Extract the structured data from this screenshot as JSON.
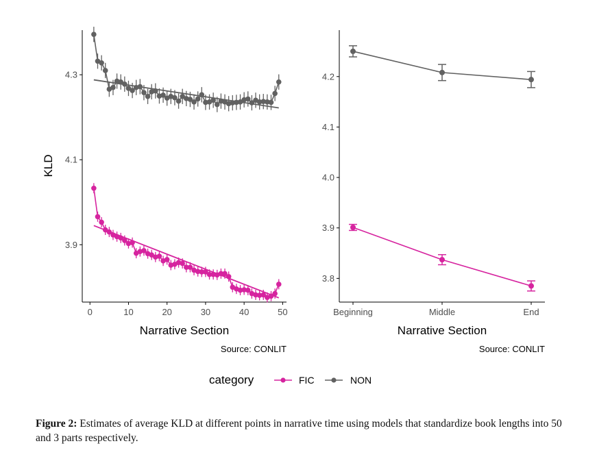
{
  "chart_data": [
    {
      "type": "line",
      "xlabel": "Narrative Section",
      "ylabel": "KLD",
      "xlim": [
        -2,
        51
      ],
      "ylim": [
        3.765,
        4.405
      ],
      "xticks": [
        0,
        10,
        20,
        30,
        40,
        50
      ],
      "yticks": [
        3.9,
        4.1,
        4.3
      ],
      "ytick_labels": [
        "3.9",
        "4.1",
        "4.3"
      ],
      "source": "Source: CONLIT",
      "error_bars": true,
      "trend_lines": true,
      "x": [
        1,
        2,
        3,
        4,
        5,
        6,
        7,
        8,
        9,
        10,
        11,
        12,
        13,
        14,
        15,
        16,
        17,
        18,
        19,
        20,
        21,
        22,
        23,
        24,
        25,
        26,
        27,
        28,
        29,
        30,
        31,
        32,
        33,
        34,
        35,
        36,
        37,
        38,
        39,
        40,
        41,
        42,
        43,
        44,
        45,
        46,
        47,
        48,
        49
      ],
      "series": [
        {
          "name": "NON",
          "color": "#616161",
          "values": [
            4.395,
            4.332,
            4.328,
            4.31,
            4.266,
            4.27,
            4.285,
            4.283,
            4.278,
            4.268,
            4.263,
            4.27,
            4.272,
            4.258,
            4.249,
            4.26,
            4.262,
            4.25,
            4.252,
            4.245,
            4.249,
            4.246,
            4.238,
            4.249,
            4.244,
            4.242,
            4.236,
            4.243,
            4.253,
            4.235,
            4.236,
            4.24,
            4.23,
            4.238,
            4.236,
            4.232,
            4.234,
            4.235,
            4.236,
            4.241,
            4.243,
            4.234,
            4.24,
            4.236,
            4.237,
            4.236,
            4.235,
            4.256,
            4.283
          ],
          "error": 0.018,
          "trend": [
            [
              1,
              4.288
            ],
            [
              49,
              4.222
            ]
          ]
        },
        {
          "name": "FIC",
          "color": "#d6249f",
          "values": [
            4.033,
            3.966,
            3.953,
            3.935,
            3.93,
            3.923,
            3.919,
            3.916,
            3.91,
            3.903,
            3.905,
            3.88,
            3.884,
            3.886,
            3.879,
            3.876,
            3.871,
            3.873,
            3.862,
            3.865,
            3.852,
            3.854,
            3.858,
            3.856,
            3.847,
            3.847,
            3.84,
            3.837,
            3.836,
            3.836,
            3.83,
            3.83,
            3.829,
            3.832,
            3.832,
            3.825,
            3.8,
            3.796,
            3.793,
            3.794,
            3.793,
            3.785,
            3.782,
            3.781,
            3.782,
            3.776,
            3.779,
            3.785,
            3.807
          ],
          "error": 0.012,
          "trend": [
            [
              1,
              3.945
            ],
            [
              49,
              3.775
            ]
          ]
        }
      ]
    },
    {
      "type": "line",
      "xlabel": "Narrative Section",
      "categories": [
        "Beginning",
        "Middle",
        "End"
      ],
      "ylim": [
        3.753,
        4.292
      ],
      "yticks": [
        3.8,
        3.9,
        4.0,
        4.1,
        4.2
      ],
      "ytick_labels": [
        "3.8",
        "3.9",
        "4.0",
        "4.1",
        "4.2"
      ],
      "source": "Source: CONLIT",
      "error_bars": true,
      "series": [
        {
          "name": "NON",
          "color": "#616161",
          "values": [
            4.25,
            4.208,
            4.194
          ],
          "error": [
            0.011,
            0.016,
            0.016
          ]
        },
        {
          "name": "FIC",
          "color": "#d6249f",
          "values": [
            3.901,
            3.837,
            3.785
          ],
          "error": [
            0.006,
            0.01,
            0.01
          ]
        }
      ]
    }
  ],
  "legend": {
    "title": "category",
    "placement": "bottom",
    "entries": [
      {
        "label": "FIC",
        "color": "#d6249f"
      },
      {
        "label": "NON",
        "color": "#616161"
      }
    ]
  },
  "caption": {
    "label": "Figure 2:",
    "text": "Estimates of average KLD at different points in narrative time using models that standardize book lengths into 50 and 3 parts respectively."
  }
}
